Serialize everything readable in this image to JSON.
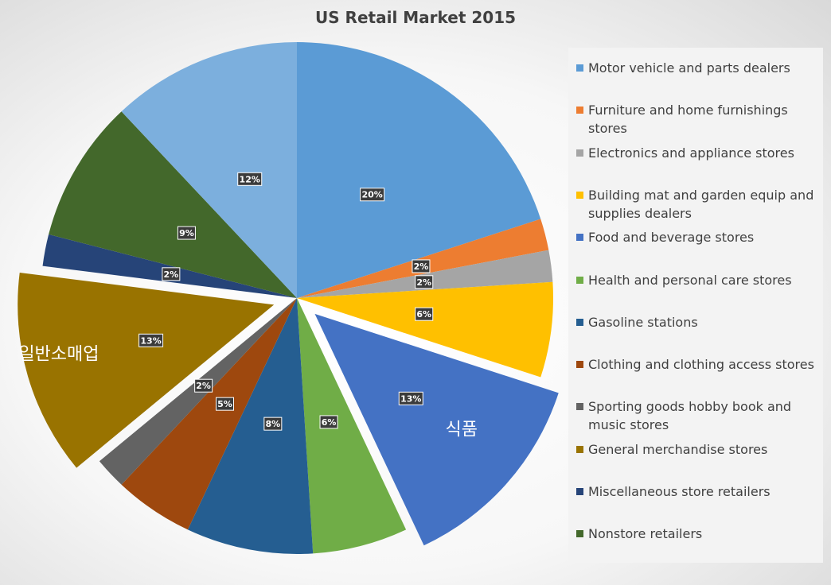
{
  "chart_data": {
    "type": "pie",
    "title": "US Retail Market 2015",
    "legend_position": "right",
    "slices": [
      {
        "name": "Motor vehicle and parts dealers",
        "value": 20,
        "label": "20%",
        "color": "#5B9BD5",
        "exploded": false
      },
      {
        "name": "Furniture and home furnishings stores",
        "value": 2,
        "label": "2%",
        "color": "#ED7D31",
        "exploded": false
      },
      {
        "name": "Electronics and appliance stores",
        "value": 2,
        "label": "2%",
        "color": "#A5A5A5",
        "exploded": false
      },
      {
        "name": "Building mat and garden equip and supplies dealers",
        "value": 6,
        "label": "6%",
        "color": "#FFC000",
        "exploded": false
      },
      {
        "name": "Food and beverage stores",
        "value": 13,
        "label": "13%",
        "color": "#4472C4",
        "exploded": true,
        "annotation": "식품"
      },
      {
        "name": "Health and personal care stores",
        "value": 6,
        "label": "6%",
        "color": "#70AD47",
        "exploded": false
      },
      {
        "name": "Gasoline stations",
        "value": 8,
        "label": "8%",
        "color": "#255E91",
        "exploded": false
      },
      {
        "name": "Clothing and clothing access stores",
        "value": 5,
        "label": "5%",
        "color": "#9E480E",
        "exploded": false
      },
      {
        "name": "Sporting goods hobby book and music stores",
        "value": 2,
        "label": "2%",
        "color": "#636363",
        "exploded": false
      },
      {
        "name": "General merchandise stores",
        "value": 13,
        "label": "13%",
        "color": "#997300",
        "exploded": true,
        "annotation": "일반소매업"
      },
      {
        "name": "Miscellaneous store retailers",
        "value": 2,
        "label": "2%",
        "color": "#264478",
        "exploded": false
      },
      {
        "name": "Nonstore retailers",
        "value": 9,
        "label": "9%",
        "color": "#43682B",
        "exploded": false
      },
      {
        "name": "",
        "value": 12,
        "label": "12%",
        "color": "#7CAFDD",
        "exploded": false
      }
    ]
  }
}
